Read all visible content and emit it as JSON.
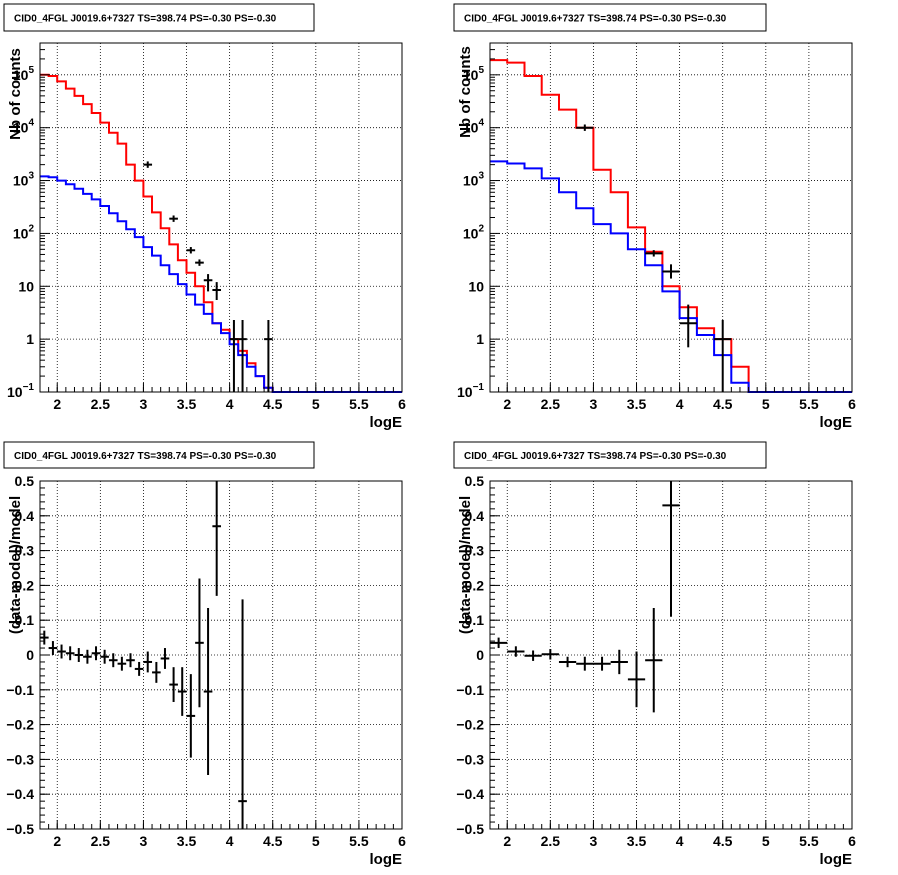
{
  "panel_title": "CID0_4FGL J0019.6+7327 TS=398.74 PS=-0.30 PS=-0.30",
  "chart_data": [
    {
      "id": "counts-fine",
      "type": "line",
      "title": "CID0_4FGL J0019.6+7327 TS=398.74 PS=-0.30 PS=-0.30",
      "xlabel": "logE",
      "ylabel": "Nb of counts",
      "xlim": [
        1.8,
        6.0
      ],
      "ylim": [
        0.1,
        400000
      ],
      "yscale": "log",
      "grid": true,
      "x_ticks": [
        {
          "v": 2,
          "label": "2"
        },
        {
          "v": 2.5,
          "label": "2.5"
        },
        {
          "v": 3,
          "label": "3"
        },
        {
          "v": 3.5,
          "label": "3.5"
        },
        {
          "v": 4,
          "label": "4"
        },
        {
          "v": 4.5,
          "label": "4.5"
        },
        {
          "v": 5,
          "label": "5"
        },
        {
          "v": 5.5,
          "label": "5.5"
        },
        {
          "v": 6,
          "label": "6"
        }
      ],
      "y_ticks": [
        {
          "v": 0.1,
          "base": "10",
          "exp": "−1"
        },
        {
          "v": 1,
          "label": "1"
        },
        {
          "v": 10,
          "label": "10"
        },
        {
          "v": 100,
          "base": "10",
          "exp": "2"
        },
        {
          "v": 1000,
          "base": "10",
          "exp": "3"
        },
        {
          "v": 10000,
          "base": "10",
          "exp": "4"
        },
        {
          "v": 100000,
          "base": "10",
          "exp": "5"
        }
      ],
      "series": [
        {
          "role": "model",
          "color": "#ff0000",
          "bin_edges": [
            1.8,
            1.9,
            2.0,
            2.1,
            2.2,
            2.3,
            2.4,
            2.5,
            2.6,
            2.7,
            2.8,
            2.9,
            3.0,
            3.1,
            3.2,
            3.3,
            3.4,
            3.5,
            3.6,
            3.7,
            3.8,
            3.9,
            4.0,
            4.1,
            4.2,
            4.3,
            4.4,
            4.5,
            4.6,
            4.7,
            6.0
          ],
          "values": [
            100000,
            95000,
            75000,
            55000,
            40000,
            28000,
            19000,
            12500,
            8000,
            5000,
            2000,
            1000,
            500,
            250,
            125,
            62,
            31,
            18,
            10,
            5,
            2.0,
            1.5,
            1.0,
            0.6,
            0.35,
            0.2,
            0.12,
            0.1,
            0.1,
            0.1
          ]
        },
        {
          "role": "background",
          "color": "#0000ff",
          "bin_edges": [
            1.8,
            1.9,
            2.0,
            2.1,
            2.2,
            2.3,
            2.4,
            2.5,
            2.6,
            2.7,
            2.8,
            2.9,
            3.0,
            3.1,
            3.2,
            3.3,
            3.4,
            3.5,
            3.6,
            3.7,
            3.8,
            3.9,
            4.0,
            4.1,
            4.2,
            4.3,
            4.4,
            4.5,
            4.6,
            4.7,
            6.0
          ],
          "values": [
            1200,
            1150,
            1000,
            850,
            700,
            560,
            440,
            330,
            240,
            170,
            120,
            85,
            55,
            38,
            25,
            17,
            11,
            7,
            4.5,
            3,
            2,
            1.3,
            0.8,
            0.5,
            0.3,
            0.2,
            0.12,
            0.1,
            0.1,
            0.1
          ]
        },
        {
          "role": "data",
          "color": "#000000",
          "points": [
            {
              "x": 3.05,
              "y": 2000,
              "xerr": 0.05
            },
            {
              "x": 3.35,
              "y": 190,
              "xerr": 0.05
            },
            {
              "x": 3.55,
              "y": 48,
              "xerr": 0.05
            },
            {
              "x": 3.65,
              "y": 28,
              "xerr": 0.05
            },
            {
              "x": 3.75,
              "y": 13,
              "xerr": 0.05,
              "yerr_lo": 8,
              "yerr_hi": 17
            },
            {
              "x": 3.85,
              "y": 8.5,
              "xerr": 0.05,
              "yerr_lo": 5.5,
              "yerr_hi": 12
            },
            {
              "x": 4.05,
              "y": 1,
              "xerr": 0.05,
              "yerr_lo": 0.1,
              "yerr_hi": 2.3
            },
            {
              "x": 4.15,
              "y": 1,
              "xerr": 0.05,
              "yerr_lo": 0.1,
              "yerr_hi": 2.3
            },
            {
              "x": 4.45,
              "y": 1,
              "xerr": 0.05,
              "yerr_lo": 0.1,
              "yerr_hi": 2.3
            }
          ]
        }
      ]
    },
    {
      "id": "counts-coarse",
      "type": "line",
      "title": "CID0_4FGL J0019.6+7327 TS=398.74 PS=-0.30 PS=-0.30",
      "xlabel": "logE",
      "ylabel": "Nb of counts",
      "xlim": [
        1.8,
        6.0
      ],
      "ylim": [
        0.1,
        400000
      ],
      "yscale": "log",
      "grid": true,
      "x_ticks": [
        {
          "v": 2,
          "label": "2"
        },
        {
          "v": 2.5,
          "label": "2.5"
        },
        {
          "v": 3,
          "label": "3"
        },
        {
          "v": 3.5,
          "label": "3.5"
        },
        {
          "v": 4,
          "label": "4"
        },
        {
          "v": 4.5,
          "label": "4.5"
        },
        {
          "v": 5,
          "label": "5"
        },
        {
          "v": 5.5,
          "label": "5.5"
        },
        {
          "v": 6,
          "label": "6"
        }
      ],
      "y_ticks": [
        {
          "v": 0.1,
          "base": "10",
          "exp": "−1"
        },
        {
          "v": 1,
          "label": "1"
        },
        {
          "v": 10,
          "label": "10"
        },
        {
          "v": 100,
          "base": "10",
          "exp": "2"
        },
        {
          "v": 1000,
          "base": "10",
          "exp": "3"
        },
        {
          "v": 10000,
          "base": "10",
          "exp": "4"
        },
        {
          "v": 100000,
          "base": "10",
          "exp": "5"
        }
      ],
      "series": [
        {
          "role": "model",
          "color": "#ff0000",
          "bin_edges": [
            1.8,
            2.0,
            2.2,
            2.4,
            2.6,
            2.8,
            3.0,
            3.2,
            3.4,
            3.6,
            3.8,
            4.0,
            4.2,
            4.4,
            4.6,
            4.8,
            6.0
          ],
          "values": [
            190000,
            170000,
            95000,
            42000,
            22000,
            10000,
            1600,
            600,
            130,
            45,
            10,
            4,
            1.6,
            1.0,
            0.3,
            0.1
          ]
        },
        {
          "role": "background",
          "color": "#0000ff",
          "bin_edges": [
            1.8,
            2.0,
            2.2,
            2.4,
            2.6,
            2.8,
            3.0,
            3.2,
            3.4,
            3.6,
            3.8,
            4.0,
            4.2,
            4.4,
            4.6,
            4.8,
            6.0
          ],
          "values": [
            2300,
            2100,
            1700,
            1100,
            600,
            300,
            150,
            100,
            50,
            25,
            8,
            2.5,
            1.2,
            0.5,
            0.15,
            0.1
          ]
        },
        {
          "role": "data",
          "color": "#000000",
          "points": [
            {
              "x": 2.9,
              "y": 10000,
              "xerr": 0.1
            },
            {
              "x": 3.7,
              "y": 42,
              "xerr": 0.1
            },
            {
              "x": 3.9,
              "y": 19,
              "xerr": 0.1,
              "yerr_lo": 14,
              "yerr_hi": 26
            },
            {
              "x": 4.1,
              "y": 2,
              "xerr": 0.1,
              "yerr_lo": 0.7,
              "yerr_hi": 4.5
            },
            {
              "x": 4.5,
              "y": 1,
              "xerr": 0.1,
              "yerr_lo": 0.1,
              "yerr_hi": 2.3
            }
          ]
        }
      ]
    },
    {
      "id": "residuals-fine",
      "type": "scatter",
      "title": "CID0_4FGL J0019.6+7327 TS=398.74 PS=-0.30 PS=-0.30",
      "xlabel": "logE",
      "ylabel": "(data-model)/model",
      "xlim": [
        1.8,
        6.0
      ],
      "ylim": [
        -0.5,
        0.5
      ],
      "yscale": "linear",
      "grid": true,
      "x_ticks": [
        {
          "v": 2,
          "label": "2"
        },
        {
          "v": 2.5,
          "label": "2.5"
        },
        {
          "v": 3,
          "label": "3"
        },
        {
          "v": 3.5,
          "label": "3.5"
        },
        {
          "v": 4,
          "label": "4"
        },
        {
          "v": 4.5,
          "label": "4.5"
        },
        {
          "v": 5,
          "label": "5"
        },
        {
          "v": 5.5,
          "label": "5.5"
        },
        {
          "v": 6,
          "label": "6"
        }
      ],
      "y_ticks": [
        {
          "v": -0.5,
          "label": "−0.5"
        },
        {
          "v": -0.4,
          "label": "−0.4"
        },
        {
          "v": -0.3,
          "label": "−0.3"
        },
        {
          "v": -0.2,
          "label": "−0.2"
        },
        {
          "v": -0.1,
          "label": "−0.1"
        },
        {
          "v": 0,
          "label": "0"
        },
        {
          "v": 0.1,
          "label": "0.1"
        },
        {
          "v": 0.2,
          "label": "0.2"
        },
        {
          "v": 0.3,
          "label": "0.3"
        },
        {
          "v": 0.4,
          "label": "0.4"
        },
        {
          "v": 0.5,
          "label": "0.5"
        }
      ],
      "series": [
        {
          "role": "residual",
          "color": "#000000",
          "points": [
            {
              "x": 1.85,
              "y": 0.05,
              "xerr": 0.05,
              "yerr": 0.02
            },
            {
              "x": 1.95,
              "y": 0.02,
              "xerr": 0.05,
              "yerr": 0.02
            },
            {
              "x": 2.05,
              "y": 0.01,
              "xerr": 0.05,
              "yerr": 0.02
            },
            {
              "x": 2.15,
              "y": 0.005,
              "xerr": 0.05,
              "yerr": 0.02
            },
            {
              "x": 2.25,
              "y": 0.0,
              "xerr": 0.05,
              "yerr": 0.02
            },
            {
              "x": 2.35,
              "y": -0.005,
              "xerr": 0.05,
              "yerr": 0.02
            },
            {
              "x": 2.45,
              "y": 0.005,
              "xerr": 0.05,
              "yerr": 0.02
            },
            {
              "x": 2.55,
              "y": -0.005,
              "xerr": 0.05,
              "yerr": 0.02
            },
            {
              "x": 2.65,
              "y": -0.015,
              "xerr": 0.05,
              "yerr": 0.02
            },
            {
              "x": 2.75,
              "y": -0.025,
              "xerr": 0.05,
              "yerr": 0.02
            },
            {
              "x": 2.85,
              "y": -0.015,
              "xerr": 0.05,
              "yerr": 0.02
            },
            {
              "x": 2.95,
              "y": -0.04,
              "xerr": 0.05,
              "yerr": 0.02
            },
            {
              "x": 3.05,
              "y": -0.02,
              "xerr": 0.05,
              "yerr": 0.03
            },
            {
              "x": 3.15,
              "y": -0.05,
              "xerr": 0.05,
              "yerr": 0.03
            },
            {
              "x": 3.25,
              "y": -0.01,
              "xerr": 0.05,
              "yerr": 0.03
            },
            {
              "x": 3.35,
              "y": -0.085,
              "xerr": 0.05,
              "yerr": 0.05
            },
            {
              "x": 3.45,
              "y": -0.105,
              "xerr": 0.05,
              "yerr": 0.07
            },
            {
              "x": 3.55,
              "y": -0.175,
              "xerr": 0.05,
              "yerr": 0.12
            },
            {
              "x": 3.65,
              "y": 0.035,
              "xerr": 0.05,
              "yerr": 0.185
            },
            {
              "x": 3.75,
              "y": -0.105,
              "xerr": 0.05,
              "yerr": 0.24
            },
            {
              "x": 3.85,
              "y": 0.37,
              "xerr": 0.05,
              "yerr": 0.2
            },
            {
              "x": 4.15,
              "y": -0.42,
              "xerr": 0.05,
              "yerr": 0.58
            }
          ]
        }
      ]
    },
    {
      "id": "residuals-coarse",
      "type": "scatter",
      "title": "CID0_4FGL J0019.6+7327 TS=398.74 PS=-0.30 PS=-0.30",
      "xlabel": "logE",
      "ylabel": "(data-model)/model",
      "xlim": [
        1.8,
        6.0
      ],
      "ylim": [
        -0.5,
        0.5
      ],
      "yscale": "linear",
      "grid": true,
      "x_ticks": [
        {
          "v": 2,
          "label": "2"
        },
        {
          "v": 2.5,
          "label": "2.5"
        },
        {
          "v": 3,
          "label": "3"
        },
        {
          "v": 3.5,
          "label": "3.5"
        },
        {
          "v": 4,
          "label": "4"
        },
        {
          "v": 4.5,
          "label": "4.5"
        },
        {
          "v": 5,
          "label": "5"
        },
        {
          "v": 5.5,
          "label": "5.5"
        },
        {
          "v": 6,
          "label": "6"
        }
      ],
      "y_ticks": [
        {
          "v": -0.5,
          "label": "−0.5"
        },
        {
          "v": -0.4,
          "label": "−0.4"
        },
        {
          "v": -0.3,
          "label": "−0.3"
        },
        {
          "v": -0.2,
          "label": "−0.2"
        },
        {
          "v": -0.1,
          "label": "−0.1"
        },
        {
          "v": 0,
          "label": "0"
        },
        {
          "v": 0.1,
          "label": "0.1"
        },
        {
          "v": 0.2,
          "label": "0.2"
        },
        {
          "v": 0.3,
          "label": "0.3"
        },
        {
          "v": 0.4,
          "label": "0.4"
        },
        {
          "v": 0.5,
          "label": "0.5"
        }
      ],
      "series": [
        {
          "role": "residual",
          "color": "#000000",
          "points": [
            {
              "x": 1.9,
              "y": 0.035,
              "xerr": 0.1,
              "yerr": 0.015
            },
            {
              "x": 2.1,
              "y": 0.01,
              "xerr": 0.1,
              "yerr": 0.015
            },
            {
              "x": 2.3,
              "y": -0.002,
              "xerr": 0.1,
              "yerr": 0.015
            },
            {
              "x": 2.5,
              "y": 0.002,
              "xerr": 0.1,
              "yerr": 0.015
            },
            {
              "x": 2.7,
              "y": -0.02,
              "xerr": 0.1,
              "yerr": 0.015
            },
            {
              "x": 2.9,
              "y": -0.025,
              "xerr": 0.1,
              "yerr": 0.02
            },
            {
              "x": 3.1,
              "y": -0.025,
              "xerr": 0.1,
              "yerr": 0.02
            },
            {
              "x": 3.3,
              "y": -0.02,
              "xerr": 0.1,
              "yerr": 0.035
            },
            {
              "x": 3.5,
              "y": -0.07,
              "xerr": 0.1,
              "yerr": 0.08
            },
            {
              "x": 3.7,
              "y": -0.015,
              "xerr": 0.1,
              "yerr": 0.15
            },
            {
              "x": 3.9,
              "y": 0.43,
              "xerr": 0.1,
              "yerr": 0.32
            }
          ]
        }
      ]
    }
  ]
}
